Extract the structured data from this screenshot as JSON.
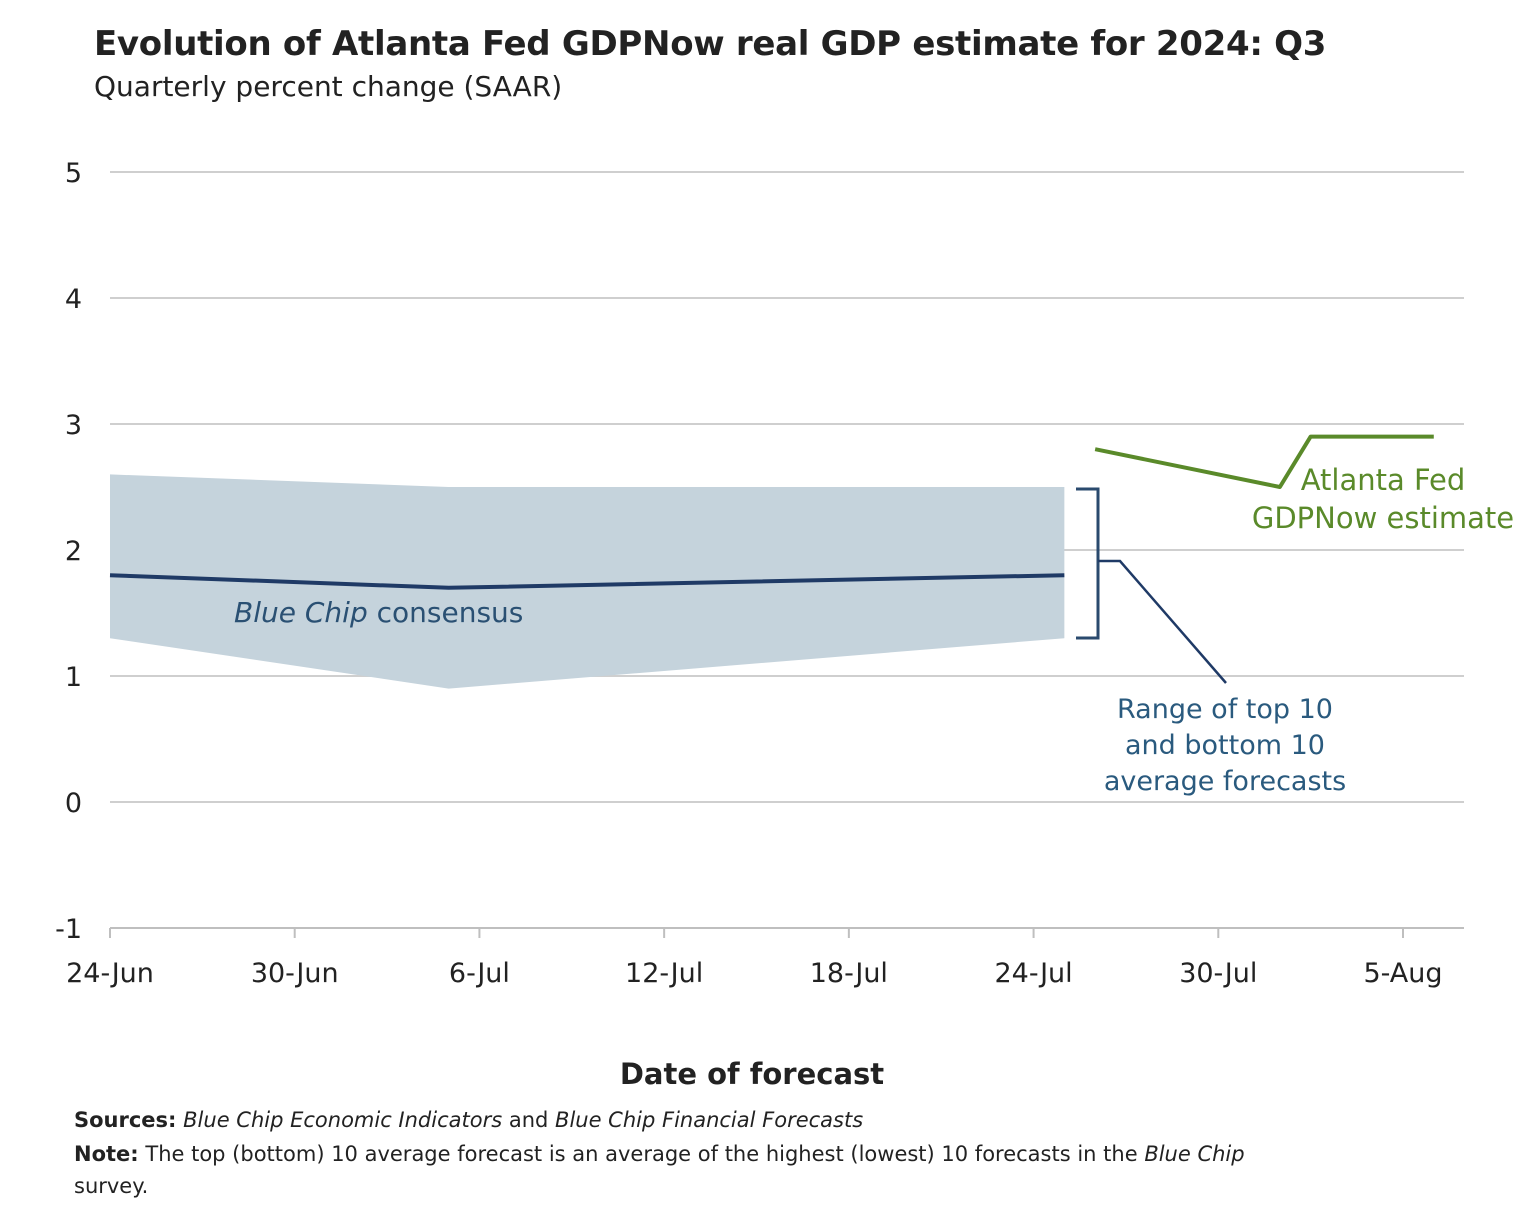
{
  "title": "Evolution of Atlanta Fed GDPNow real GDP estimate for 2024: Q3",
  "subtitle": "Quarterly percent change (SAAR)",
  "footer": {
    "sources_label": "Sources:",
    "sources_part1": "Blue Chip Economic Indicators",
    "sources_and": " and ",
    "sources_part2": "Blue Chip Financial Forecasts",
    "note_label": "Note:",
    "note_text1": " The top (bottom) 10 average forecast is an average of the highest (lowest) 10 forecasts in the ",
    "note_italic": "Blue Chip",
    "note_text2": "survey."
  },
  "chart_data": {
    "type": "line",
    "xlabel": "Date of forecast",
    "x_ticks": [
      "24-Jun",
      "30-Jun",
      "6-Jul",
      "12-Jul",
      "18-Jul",
      "24-Jul",
      "30-Jul",
      "5-Aug"
    ],
    "ylim": [
      -1,
      5
    ],
    "y_ticks": [
      5,
      4,
      3,
      2,
      1,
      0,
      -1
    ],
    "grid": true,
    "series": [
      {
        "name": "Blue Chip consensus",
        "style": "line",
        "color": "#1f3a66",
        "x": [
          "2024-06-24",
          "2024-07-05",
          "2024-07-25"
        ],
        "y": [
          1.8,
          1.7,
          1.8
        ]
      },
      {
        "name": "Range of top 10 and bottom 10 average forecasts",
        "style": "band",
        "color": "#c5d3dc",
        "x": [
          "2024-06-24",
          "2024-07-05",
          "2024-07-25"
        ],
        "upper": [
          2.6,
          2.5,
          2.5
        ],
        "lower": [
          1.3,
          0.9,
          1.3
        ]
      },
      {
        "name": "Atlanta Fed GDPNow estimate",
        "style": "line",
        "color": "#5a8a2a",
        "x": [
          "2024-07-26",
          "2024-08-01",
          "2024-08-02",
          "2024-08-06"
        ],
        "y": [
          2.8,
          2.5,
          2.9,
          2.9
        ]
      }
    ],
    "annotations": {
      "consensus_label_italic": "Blue Chip",
      "consensus_label_rest": " consensus",
      "range_lines": [
        "Range of top 10",
        "and bottom 10",
        "average forecasts"
      ],
      "gdpnow_lines": [
        "Atlanta Fed",
        "GDPNow estimate"
      ]
    }
  }
}
